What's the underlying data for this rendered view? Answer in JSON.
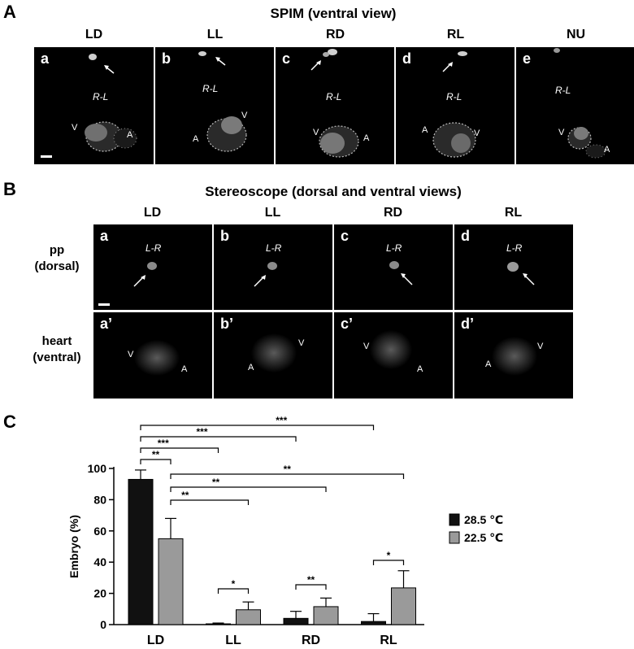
{
  "panelA": {
    "letter": "A",
    "title": "SPIM (ventral view)",
    "columns": [
      "LD",
      "LL",
      "RD",
      "RL",
      "NU"
    ],
    "panels": [
      {
        "letter": "a",
        "axis": "R-L",
        "labels": [
          "V",
          "A"
        ]
      },
      {
        "letter": "b",
        "axis": "R-L",
        "labels": [
          "V",
          "A"
        ]
      },
      {
        "letter": "c",
        "axis": "R-L",
        "labels": [
          "V",
          "A"
        ]
      },
      {
        "letter": "d",
        "axis": "R-L",
        "labels": [
          "A",
          "V"
        ]
      },
      {
        "letter": "e",
        "axis": "R-L",
        "labels": [
          "V",
          "A"
        ]
      }
    ]
  },
  "panelB": {
    "letter": "B",
    "title": "Stereoscope (dorsal and ventral views)",
    "columns": [
      "LD",
      "LL",
      "RD",
      "RL"
    ],
    "row1_label": [
      "pp",
      "(dorsal)"
    ],
    "row2_label": [
      "heart",
      "(ventral)"
    ],
    "top_panels": [
      {
        "letter": "a",
        "axis": "L-R"
      },
      {
        "letter": "b",
        "axis": "L-R"
      },
      {
        "letter": "c",
        "axis": "L-R"
      },
      {
        "letter": "d",
        "axis": "L-R"
      }
    ],
    "bottom_panels": [
      {
        "letter": "a’",
        "labels": [
          "V",
          "A"
        ]
      },
      {
        "letter": "b’",
        "labels": [
          "A",
          "V"
        ]
      },
      {
        "letter": "c’",
        "labels": [
          "V",
          "A"
        ]
      },
      {
        "letter": "d’",
        "labels": [
          "A",
          "V"
        ]
      }
    ]
  },
  "panelC": {
    "letter": "C",
    "chart_data": {
      "type": "bar",
      "categories": [
        "LD",
        "LL",
        "RD",
        "RL"
      ],
      "ylabel": "Embryo (%)",
      "xlabel": "",
      "ylim": [
        0,
        100
      ],
      "yticks": [
        0,
        20,
        40,
        60,
        80,
        100
      ],
      "legend_position": "right",
      "series": [
        {
          "name": "28.5 ℃",
          "color": "#111111",
          "values": [
            93,
            0.5,
            4,
            2
          ],
          "errors": [
            6,
            0.5,
            4.5,
            5
          ]
        },
        {
          "name": "22.5 ℃",
          "color": "#9a9a9a",
          "values": [
            55,
            9.5,
            11.5,
            23.5
          ],
          "errors": [
            13,
            5,
            5.5,
            11
          ]
        }
      ],
      "significance": [
        {
          "label": "***",
          "from": "LD-28.5",
          "to": "RL-28.5"
        },
        {
          "label": "***",
          "from": "LD-28.5",
          "to": "RD-28.5"
        },
        {
          "label": "***",
          "from": "LD-28.5",
          "to": "LL-28.5"
        },
        {
          "label": "**",
          "from": "LD-28.5",
          "to": "LD-22.5"
        },
        {
          "label": "**",
          "from": "LD-22.5",
          "to": "RL-22.5"
        },
        {
          "label": "**",
          "from": "LD-22.5",
          "to": "RD-22.5"
        },
        {
          "label": "**",
          "from": "LD-22.5",
          "to": "LL-22.5"
        },
        {
          "label": "*",
          "from": "LL-28.5",
          "to": "LL-22.5"
        },
        {
          "label": "**",
          "from": "RD-28.5",
          "to": "RD-22.5"
        },
        {
          "label": "*",
          "from": "RL-28.5",
          "to": "RL-22.5"
        }
      ]
    }
  }
}
